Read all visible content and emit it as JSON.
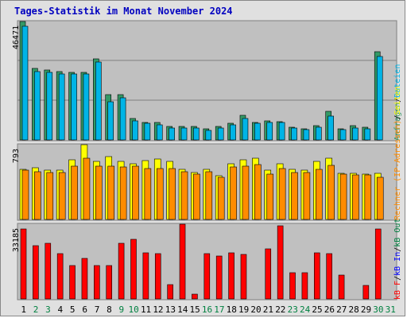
{
  "title": "Tages-Statistik im Monat November 2024",
  "chart_data": [
    {
      "type": "bar",
      "x": [
        "1",
        "2",
        "3",
        "4",
        "5",
        "6",
        "7",
        "8",
        "9",
        "10",
        "11",
        "12",
        "13",
        "14",
        "15",
        "16",
        "17",
        "18",
        "19",
        "20",
        "21",
        "22",
        "23",
        "24",
        "25",
        "26",
        "27",
        "28",
        "29",
        "30",
        "31"
      ],
      "weekend_days": [
        "2",
        "3",
        "9",
        "10",
        "16",
        "17",
        "23",
        "24",
        "30",
        "31"
      ],
      "ymax_label": "46471",
      "ylim": [
        0,
        46471
      ],
      "series": [
        {
          "name": "Anfragen",
          "color": "#339966",
          "values": [
            46471,
            28000,
            27400,
            26900,
            26500,
            26400,
            31800,
            17700,
            17700,
            8300,
            7000,
            6800,
            5300,
            5300,
            5300,
            4300,
            5400,
            6500,
            9700,
            7000,
            7400,
            7300,
            5100,
            4500,
            5600,
            11200,
            4300,
            5500,
            5000,
            34600,
            0
          ]
        },
        {
          "name": "Dateien",
          "color": "#00b4e6",
          "values": [
            44500,
            26800,
            26600,
            26000,
            25800,
            25800,
            30500,
            15000,
            16600,
            7400,
            6400,
            5800,
            4700,
            4800,
            4700,
            3800,
            4600,
            5800,
            8300,
            6500,
            6800,
            6800,
            4700,
            4000,
            5000,
            9500,
            3900,
            4600,
            4500,
            32900,
            0
          ]
        }
      ]
    },
    {
      "type": "bar",
      "x": [
        "1",
        "2",
        "3",
        "4",
        "5",
        "6",
        "7",
        "8",
        "9",
        "10",
        "11",
        "12",
        "13",
        "14",
        "15",
        "16",
        "17",
        "18",
        "19",
        "20",
        "21",
        "22",
        "23",
        "24",
        "25",
        "26",
        "27",
        "28",
        "29",
        "30",
        "31"
      ],
      "ymax_label": "793",
      "ylim": [
        0,
        793
      ],
      "series": [
        {
          "name": "Seiten",
          "color": "#ffff00",
          "values": [
            535,
            545,
            525,
            525,
            630,
            793,
            620,
            669,
            620,
            590,
            623,
            640,
            620,
            528,
            500,
            528,
            463,
            590,
            635,
            650,
            520,
            590,
            530,
            525,
            619,
            650,
            493,
            490,
            485,
            490,
            0
          ]
        },
        {
          "name": "Rechner (IP-Adressen)",
          "color": "#ff8c00",
          "values": [
            521,
            508,
            497,
            497,
            563,
            650,
            565,
            566,
            560,
            563,
            541,
            541,
            541,
            504,
            478,
            503,
            445,
            561,
            568,
            580,
            481,
            538,
            497,
            500,
            530,
            576,
            477,
            476,
            470,
            450,
            0
          ]
        }
      ]
    },
    {
      "type": "bar",
      "x": [
        "1",
        "2",
        "3",
        "4",
        "5",
        "6",
        "7",
        "8",
        "9",
        "10",
        "11",
        "12",
        "13",
        "14",
        "15",
        "16",
        "17",
        "18",
        "19",
        "20",
        "21",
        "22",
        "23",
        "24",
        "25",
        "26",
        "27",
        "28",
        "29",
        "30",
        "31"
      ],
      "ymax_label": "33185",
      "ylim": [
        0,
        33185
      ],
      "series": [
        {
          "name": "kB F",
          "color": "#ff0000",
          "values": [
            31000,
            23800,
            24800,
            20100,
            14900,
            17900,
            14700,
            14700,
            24800,
            26500,
            20600,
            20100,
            6500,
            33185,
            2000,
            20100,
            19200,
            20600,
            19700,
            0,
            22200,
            32500,
            11600,
            11600,
            20600,
            20100,
            10700,
            0,
            6000,
            31000,
            0
          ]
        }
      ]
    }
  ],
  "right_labels": {
    "chart1": [
      "Anfragen",
      "/",
      "Dateien"
    ],
    "chart2": [
      "Rechner (IP-Adressen)",
      "/",
      "Seiten"
    ],
    "chart3": [
      "kB F",
      "/",
      "kB In",
      "/",
      "kB Out"
    ]
  },
  "colors": {
    "background": "#e0e0e0",
    "panel": "#c0c0c0",
    "title": "#0000c0",
    "weekday": "#000000",
    "weekend": "#008040",
    "anfragen": "#339966",
    "dateien": "#00b4e6",
    "seiten": "#ffff00",
    "rechner": "#ff8c00",
    "kbf": "#ff0000",
    "kbin": "#0000ff",
    "kbout": "#008040"
  }
}
